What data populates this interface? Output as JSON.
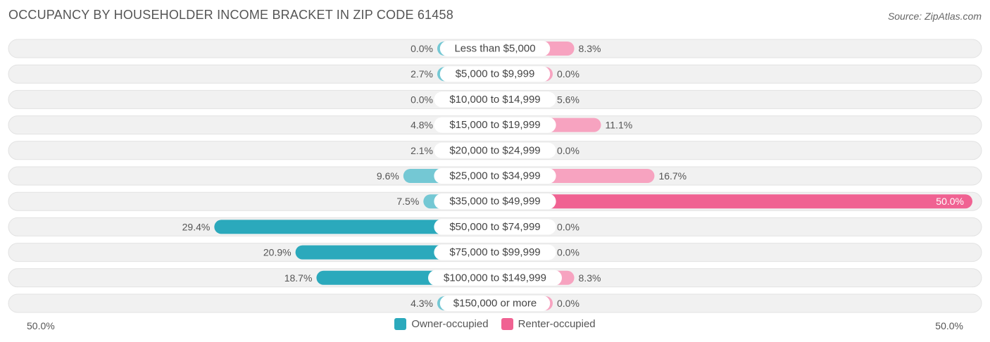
{
  "title": "OCCUPANCY BY HOUSEHOLDER INCOME BRACKET IN ZIP CODE 61458",
  "source": "Source: ZipAtlas.com",
  "colors": {
    "owner": "#2ba9bc",
    "owner_light": "#74c8d4",
    "renter": "#f06292",
    "renter_light": "#f7a3c0",
    "row_bg": "#f1f1f1"
  },
  "chart_data": {
    "type": "bar",
    "orientation": "diverging-horizontal",
    "categories": [
      "Less than $5,000",
      "$5,000 to $9,999",
      "$10,000 to $14,999",
      "$15,000 to $19,999",
      "$20,000 to $24,999",
      "$25,000 to $34,999",
      "$35,000 to $49,999",
      "$50,000 to $74,999",
      "$75,000 to $99,999",
      "$100,000 to $149,999",
      "$150,000 or more"
    ],
    "series": [
      {
        "name": "Owner-occupied",
        "values": [
          0.0,
          2.7,
          0.0,
          4.8,
          2.1,
          9.6,
          7.5,
          29.4,
          20.9,
          18.7,
          4.3
        ],
        "labels": [
          "0.0%",
          "2.7%",
          "0.0%",
          "4.8%",
          "2.1%",
          "9.6%",
          "7.5%",
          "29.4%",
          "20.9%",
          "18.7%",
          "4.3%"
        ]
      },
      {
        "name": "Renter-occupied",
        "values": [
          8.3,
          0.0,
          5.6,
          11.1,
          0.0,
          16.7,
          50.0,
          0.0,
          0.0,
          8.3,
          0.0
        ],
        "labels": [
          "8.3%",
          "0.0%",
          "5.6%",
          "11.1%",
          "0.0%",
          "16.7%",
          "50.0%",
          "0.0%",
          "0.0%",
          "8.3%",
          "0.0%"
        ]
      }
    ],
    "xlim": [
      -50,
      50
    ],
    "axis_labels": {
      "left": "50.0%",
      "right": "50.0%"
    },
    "legend_position": "bottom-center"
  }
}
